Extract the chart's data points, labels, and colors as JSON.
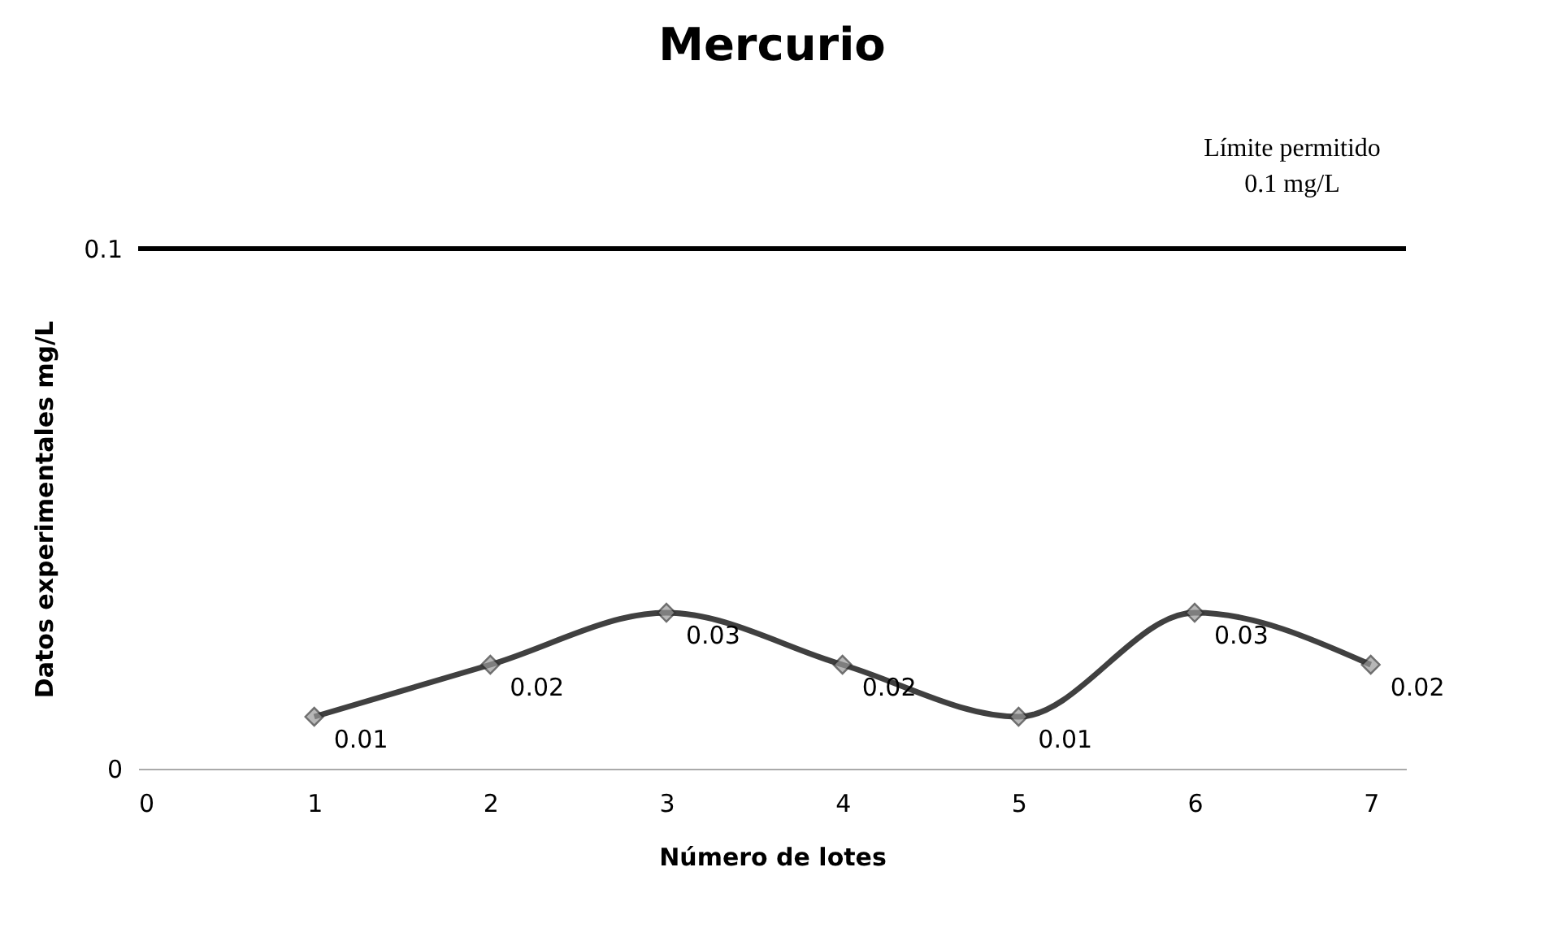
{
  "chart_data": {
    "type": "line",
    "title": "Mercurio",
    "xlabel": "Número de lotes",
    "ylabel": "Datos experimentales mg/L",
    "x": [
      1,
      2,
      3,
      4,
      5,
      6,
      7
    ],
    "series": [
      {
        "color": "#404040",
        "values": [
          0.01,
          0.02,
          0.03,
          0.02,
          0.01,
          0.03,
          0.02
        ]
      }
    ],
    "xlim": [
      0,
      7.2
    ],
    "xticks": [
      0,
      1,
      2,
      3,
      4,
      5,
      6,
      7
    ],
    "ylim": [
      0,
      0.1
    ],
    "yticks": [
      0,
      0.1
    ],
    "marker": "diamond",
    "data_labels": true,
    "ref_lines": [
      {
        "axis": "y",
        "value": 0.1,
        "color": "#000000"
      }
    ],
    "annotations": [
      "Límite permitido",
      "0.1 mg/L"
    ]
  }
}
